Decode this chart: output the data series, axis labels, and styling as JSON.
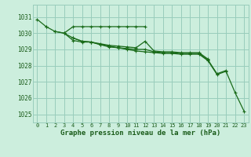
{
  "hours": [
    0,
    1,
    2,
    3,
    4,
    5,
    6,
    7,
    8,
    9,
    10,
    11,
    12,
    13,
    14,
    15,
    16,
    17,
    18,
    19,
    20,
    21,
    22,
    23
  ],
  "line1": [
    1030.85,
    1030.4,
    null,
    null,
    null,
    null,
    null,
    null,
    null,
    null,
    null,
    null,
    null,
    null,
    null,
    null,
    null,
    null,
    null,
    null,
    null,
    null,
    null,
    null
  ],
  "line2": [
    null,
    1030.4,
    1030.1,
    1030.0,
    1030.4,
    1030.4,
    1030.4,
    1030.4,
    1030.4,
    1030.4,
    1030.4,
    1030.4,
    1030.4,
    null,
    null,
    null,
    null,
    null,
    null,
    null,
    null,
    null,
    null,
    null
  ],
  "line3": [
    null,
    null,
    1030.1,
    1030.0,
    1029.55,
    1029.45,
    1029.45,
    1029.35,
    1029.25,
    1029.2,
    1029.15,
    1029.1,
    1029.5,
    1028.9,
    1028.85,
    1028.85,
    1028.8,
    1028.8,
    1028.8,
    1028.4,
    null,
    null,
    null,
    null
  ],
  "line4": [
    null,
    null,
    null,
    1030.0,
    1029.7,
    1029.5,
    1029.45,
    1029.3,
    1029.2,
    1029.1,
    1029.05,
    1029.0,
    1029.0,
    1028.85,
    1028.8,
    1028.8,
    1028.75,
    1028.75,
    1028.75,
    1028.35,
    1027.5,
    1027.7,
    null,
    null
  ],
  "line5": [
    null,
    null,
    null,
    null,
    1029.7,
    1029.5,
    1029.45,
    1029.3,
    1029.15,
    1029.1,
    1029.0,
    1028.9,
    1028.85,
    1028.8,
    1028.75,
    1028.75,
    1028.7,
    1028.7,
    1028.7,
    1028.3,
    1027.45,
    1027.65,
    1026.35,
    1025.2
  ],
  "ylim": [
    1024.5,
    1031.75
  ],
  "yticks": [
    1025,
    1026,
    1027,
    1028,
    1029,
    1030,
    1031
  ],
  "xlim": [
    -0.5,
    23.5
  ],
  "xticks": [
    0,
    1,
    2,
    3,
    4,
    5,
    6,
    7,
    8,
    9,
    10,
    11,
    12,
    13,
    14,
    15,
    16,
    17,
    18,
    19,
    20,
    21,
    22,
    23
  ],
  "xlabel": "Graphe pression niveau de la mer (hPa)",
  "line_color": "#1a6b1a",
  "bg_color": "#cceedd",
  "grid_color": "#99ccbb",
  "text_color": "#1a5c1a",
  "label_color": "#1a5c1a"
}
